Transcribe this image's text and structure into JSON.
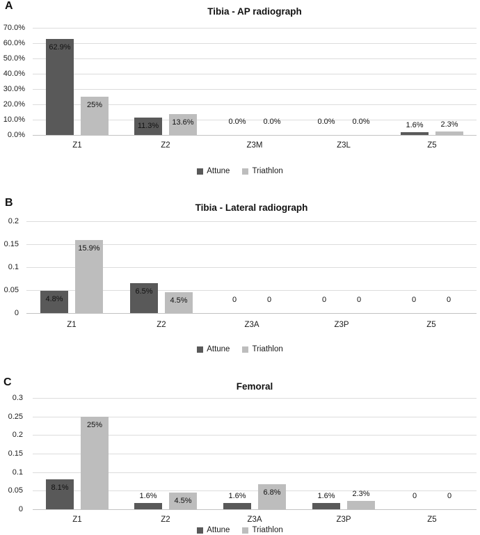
{
  "figure": {
    "background": "#ffffff"
  },
  "colors": {
    "attune": "#595959",
    "triathlon": "#bdbdbd",
    "gridline": "#dcdcdc",
    "axis_line": "#c2c2c2",
    "text": "#1a1a1a"
  },
  "chart_data": [
    {
      "type": "bar",
      "panel": "A",
      "title": "Tibia - AP radiograph",
      "categories": [
        "Z1",
        "Z2",
        "Z3M",
        "Z3L",
        "Z5"
      ],
      "xlabel": "",
      "ylabel": "",
      "ylim": [
        0,
        70
      ],
      "ytick_values": [
        70,
        60,
        50,
        40,
        30,
        20,
        10,
        0
      ],
      "ytick_labels": [
        "70.0%",
        "60.0%",
        "50.0%",
        "40.0%",
        "30.0%",
        "20.0%",
        "10.0%",
        "0.0%"
      ],
      "grid": true,
      "legend_position": "bottom",
      "series": [
        {
          "name": "Attune",
          "values": [
            62.9,
            11.3,
            0,
            0,
            1.6
          ],
          "labels": [
            "62.9%",
            "11.3%",
            "0.0%",
            "0.0%",
            "1.6%"
          ]
        },
        {
          "name": "Triathlon",
          "values": [
            25,
            13.6,
            0,
            0,
            2.3
          ],
          "labels": [
            "25%",
            "13.6%",
            "0.0%",
            "0.0%",
            "2.3%"
          ]
        }
      ]
    },
    {
      "type": "bar",
      "panel": "B",
      "title": "Tibia - Lateral radiograph",
      "categories": [
        "Z1",
        "Z2",
        "Z3A",
        "Z3P",
        "Z5"
      ],
      "xlabel": "",
      "ylabel": "",
      "ylim": [
        0,
        0.2
      ],
      "ytick_values": [
        0.2,
        0.15,
        0.1,
        0.05,
        0
      ],
      "ytick_labels": [
        "0.2",
        "0.15",
        "0.1",
        "0.05",
        "0"
      ],
      "grid": true,
      "legend_position": "bottom",
      "series": [
        {
          "name": "Attune",
          "values": [
            0.048,
            0.065,
            0,
            0,
            0
          ],
          "labels": [
            "4.8%",
            "6.5%",
            "0",
            "0",
            "0"
          ]
        },
        {
          "name": "Triathlon",
          "values": [
            0.159,
            0.045,
            0,
            0,
            0
          ],
          "labels": [
            "15.9%",
            "4.5%",
            "0",
            "0",
            "0"
          ]
        }
      ]
    },
    {
      "type": "bar",
      "panel": "C",
      "title": "Femoral",
      "categories": [
        "Z1",
        "Z2",
        "Z3A",
        "Z3P",
        "Z5"
      ],
      "xlabel": "",
      "ylabel": "",
      "ylim": [
        0,
        0.3
      ],
      "ytick_values": [
        0.3,
        0.25,
        0.2,
        0.15,
        0.1,
        0.05,
        0
      ],
      "ytick_labels": [
        "0.3",
        "0.25",
        "0.2",
        "0.15",
        "0.1",
        "0.05",
        "0"
      ],
      "grid": true,
      "legend_position": "bottom",
      "series": [
        {
          "name": "Attune",
          "values": [
            0.081,
            0.016,
            0.016,
            0.016,
            0
          ],
          "labels": [
            "8.1%",
            "1.6%",
            "1.6%",
            "1.6%",
            "0"
          ]
        },
        {
          "name": "Triathlon",
          "values": [
            0.25,
            0.045,
            0.068,
            0.023,
            0
          ],
          "labels": [
            "25%",
            "4.5%",
            "6.8%",
            "2.3%",
            "0"
          ]
        }
      ]
    }
  ]
}
